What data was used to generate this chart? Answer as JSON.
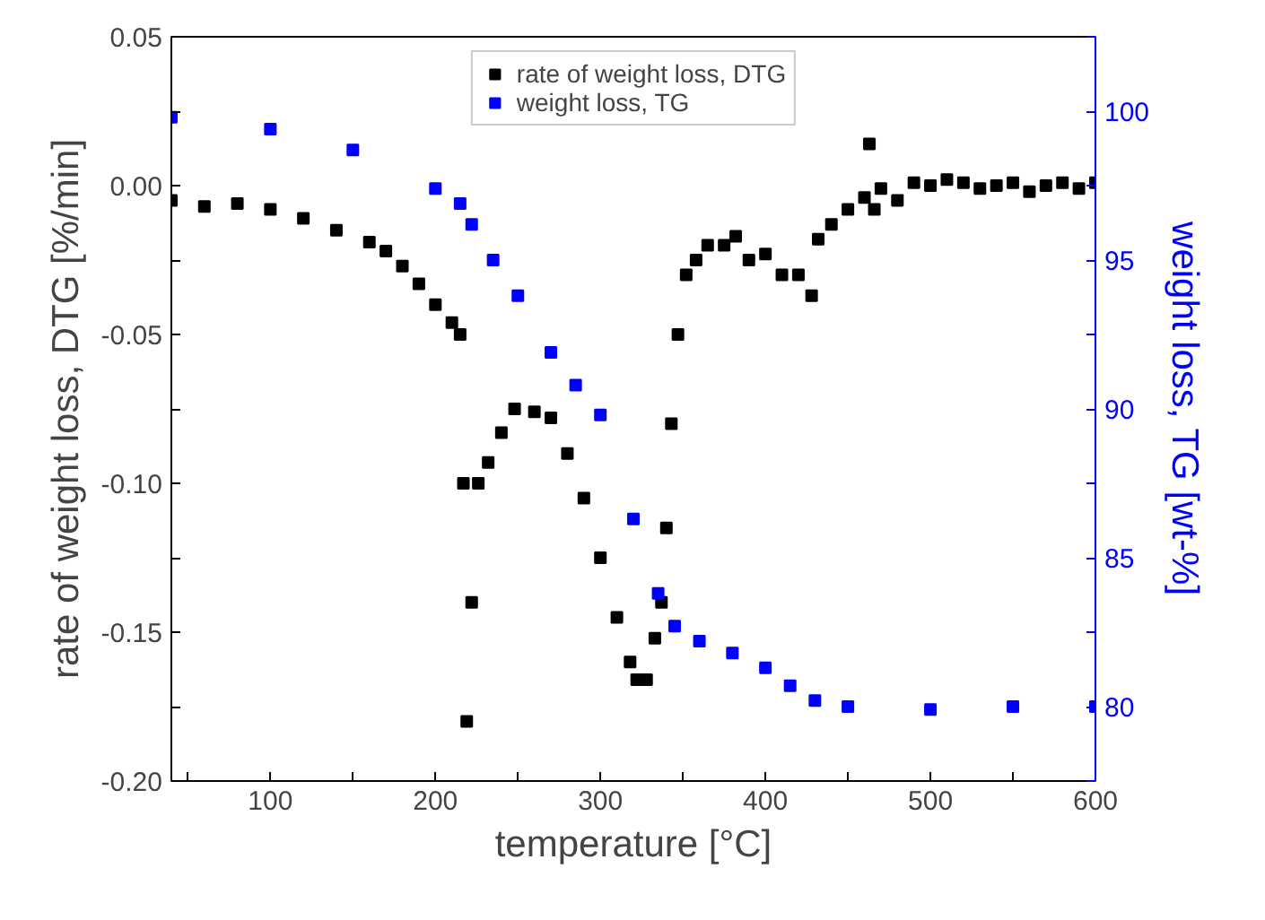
{
  "chart_data": {
    "type": "scatter",
    "xlabel": "temperature [°C]",
    "ylabel": "rate of weight loss, DTG [%/min]",
    "y2label": "weight loss, TG [wt-%]",
    "xlim": [
      40,
      600
    ],
    "xticks": [
      {
        "value": 50,
        "label": null
      },
      100,
      {
        "value": 150,
        "label": null
      },
      200,
      {
        "value": 250,
        "label": null
      },
      300,
      {
        "value": 350,
        "label": null
      },
      400,
      {
        "value": 450,
        "label": null
      },
      500,
      {
        "value": 550,
        "label": null
      },
      600
    ],
    "ylim": [
      -0.2,
      0.05
    ],
    "yticks": [
      {
        "value": -0.2,
        "label": "-0.20"
      },
      {
        "value": -0.175,
        "label": null
      },
      {
        "value": -0.15,
        "label": "-0.15"
      },
      {
        "value": -0.125,
        "label": null
      },
      {
        "value": -0.1,
        "label": "-0.10"
      },
      {
        "value": -0.075,
        "label": null
      },
      {
        "value": -0.05,
        "label": "-0.05"
      },
      {
        "value": -0.025,
        "label": null
      },
      {
        "value": 0,
        "label": "0.00"
      },
      {
        "value": 0.025,
        "label": null
      },
      {
        "value": 0.05,
        "label": "0.05"
      }
    ],
    "y2lim": [
      77.5,
      102.5
    ],
    "y2ticks": [
      {
        "value": 77.5,
        "label": null
      },
      80,
      {
        "value": 82.5,
        "label": null
      },
      85,
      {
        "value": 87.5,
        "label": null
      },
      90,
      {
        "value": 92.5,
        "label": null
      },
      95,
      {
        "value": 97.5,
        "label": null
      },
      100,
      {
        "value": 102.5,
        "label": null
      }
    ],
    "marker": "square",
    "legend": "top",
    "grid": false,
    "series": [
      {
        "name": "rate of weight loss, DTG",
        "color": "#000000",
        "x": [
          40,
          60,
          80,
          100,
          120,
          140,
          160,
          170,
          180,
          190,
          200,
          210,
          215,
          217,
          219,
          222,
          226,
          232,
          240,
          248,
          260,
          270,
          280,
          290,
          300,
          310,
          318,
          322,
          328,
          333,
          337,
          340,
          343,
          347,
          352,
          358,
          365,
          375,
          382,
          390,
          400,
          410,
          420,
          428,
          432,
          440,
          450,
          460,
          463,
          466,
          470,
          480,
          490,
          500,
          510,
          520,
          530,
          540,
          550,
          560,
          570,
          580,
          590,
          600
        ],
        "values": [
          -0.005,
          -0.007,
          -0.006,
          -0.008,
          -0.011,
          -0.015,
          -0.019,
          -0.022,
          -0.027,
          -0.033,
          -0.04,
          -0.046,
          -0.05,
          -0.1,
          -0.18,
          -0.14,
          -0.1,
          -0.093,
          -0.083,
          -0.075,
          -0.076,
          -0.078,
          -0.09,
          -0.105,
          -0.125,
          -0.145,
          -0.16,
          -0.166,
          -0.166,
          -0.152,
          -0.14,
          -0.115,
          -0.08,
          -0.05,
          -0.03,
          -0.025,
          -0.02,
          -0.02,
          -0.017,
          -0.025,
          -0.023,
          -0.03,
          -0.03,
          -0.037,
          -0.018,
          -0.013,
          -0.008,
          -0.004,
          0.014,
          -0.008,
          -0.001,
          -0.005,
          0.001,
          0.0,
          0.002,
          0.001,
          -0.001,
          0.0,
          0.001,
          -0.002,
          0.0,
          0.001,
          -0.001,
          0.001
        ]
      },
      {
        "name": "weight loss, TG",
        "color": "#0000ff",
        "axis": "y2",
        "x": [
          40,
          100,
          150,
          200,
          215,
          222,
          235,
          250,
          270,
          285,
          300,
          320,
          335,
          345,
          360,
          380,
          400,
          415,
          430,
          450,
          500,
          550,
          600
        ],
        "values": [
          99.8,
          99.4,
          98.7,
          97.4,
          96.9,
          96.2,
          95.0,
          93.8,
          91.9,
          90.8,
          89.8,
          86.3,
          83.8,
          82.7,
          82.2,
          81.8,
          81.3,
          80.7,
          80.2,
          80.0,
          79.9,
          80.0,
          80.0
        ]
      }
    ]
  }
}
